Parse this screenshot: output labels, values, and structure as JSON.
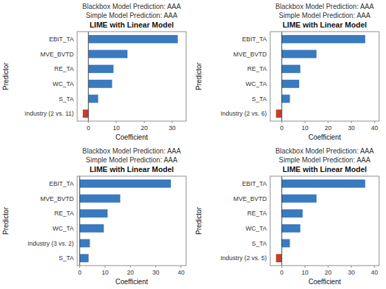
{
  "chart_data": [
    {
      "type": "bar",
      "orientation": "horizontal",
      "title": "LIME with Linear Model",
      "subtitle": [
        "Blackbox Model Prediction: AAA",
        "Simple Model Prediction: AAA"
      ],
      "categories": [
        "EBIT_TA",
        "MVE_BVTD",
        "RE_TA",
        "WC_TA",
        "S_TA",
        "Industry (2 vs. 11)"
      ],
      "values": [
        32.0,
        14.0,
        9.0,
        8.5,
        3.5,
        -2.0
      ],
      "colors": [
        "#3a7abf",
        "#3a7abf",
        "#3a7abf",
        "#3a7abf",
        "#3a7abf",
        "#c0402b"
      ],
      "xlim": [
        -4,
        35
      ],
      "xticks": [
        0,
        10,
        20,
        30
      ],
      "xlabel": "Coefficient",
      "ylabel": "Predictor",
      "grid": false
    },
    {
      "type": "bar",
      "orientation": "horizontal",
      "title": "LIME with Linear Model",
      "subtitle": [
        "Blackbox Model Prediction: AAA",
        "Simple Model Prediction: AAA"
      ],
      "categories": [
        "EBIT_TA",
        "MVE_BVTD",
        "RE_TA",
        "WC_TA",
        "S_TA",
        "Industry (2 vs. 6)"
      ],
      "values": [
        36.0,
        15.0,
        8.0,
        7.5,
        3.5,
        -2.5
      ],
      "colors": [
        "#3a7abf",
        "#3a7abf",
        "#3a7abf",
        "#3a7abf",
        "#3a7abf",
        "#c0402b"
      ],
      "xlim": [
        -5,
        42
      ],
      "xticks": [
        0,
        10,
        20,
        30,
        40
      ],
      "xlabel": "Coefficient",
      "ylabel": "Predictor",
      "grid": false
    },
    {
      "type": "bar",
      "orientation": "horizontal",
      "title": "LIME with Linear Model",
      "subtitle": [
        "Blackbox Model Prediction: AAA",
        "Simple Model Prediction: AAA"
      ],
      "categories": [
        "EBIT_TA",
        "MVE_BVTD",
        "RE_TA",
        "WC_TA",
        "Industry (3 vs. 2)",
        "S_TA"
      ],
      "values": [
        36.0,
        16.0,
        11.0,
        9.5,
        4.0,
        3.5
      ],
      "colors": [
        "#3a7abf",
        "#3a7abf",
        "#3a7abf",
        "#3a7abf",
        "#3a7abf",
        "#3a7abf"
      ],
      "xlim": [
        -1,
        42
      ],
      "xticks": [
        0,
        10,
        20,
        30,
        40
      ],
      "xlabel": "Coefficient",
      "ylabel": "Predictor",
      "grid": false
    },
    {
      "type": "bar",
      "orientation": "horizontal",
      "title": "LIME with Linear Model",
      "subtitle": [
        "Blackbox Model Prediction: AAA",
        "Simple Model Prediction: AAA"
      ],
      "categories": [
        "EBIT_TA",
        "MVE_BVTD",
        "RE_TA",
        "WC_TA",
        "S_TA",
        "Industry (2 vs. 5)"
      ],
      "values": [
        36.0,
        15.0,
        9.0,
        8.0,
        3.5,
        -2.5
      ],
      "colors": [
        "#3a7abf",
        "#3a7abf",
        "#3a7abf",
        "#3a7abf",
        "#3a7abf",
        "#c0402b"
      ],
      "xlim": [
        -5,
        42
      ],
      "xticks": [
        0,
        10,
        20,
        30,
        40
      ],
      "xlabel": "Coefficient",
      "ylabel": "Predictor",
      "grid": false
    }
  ]
}
